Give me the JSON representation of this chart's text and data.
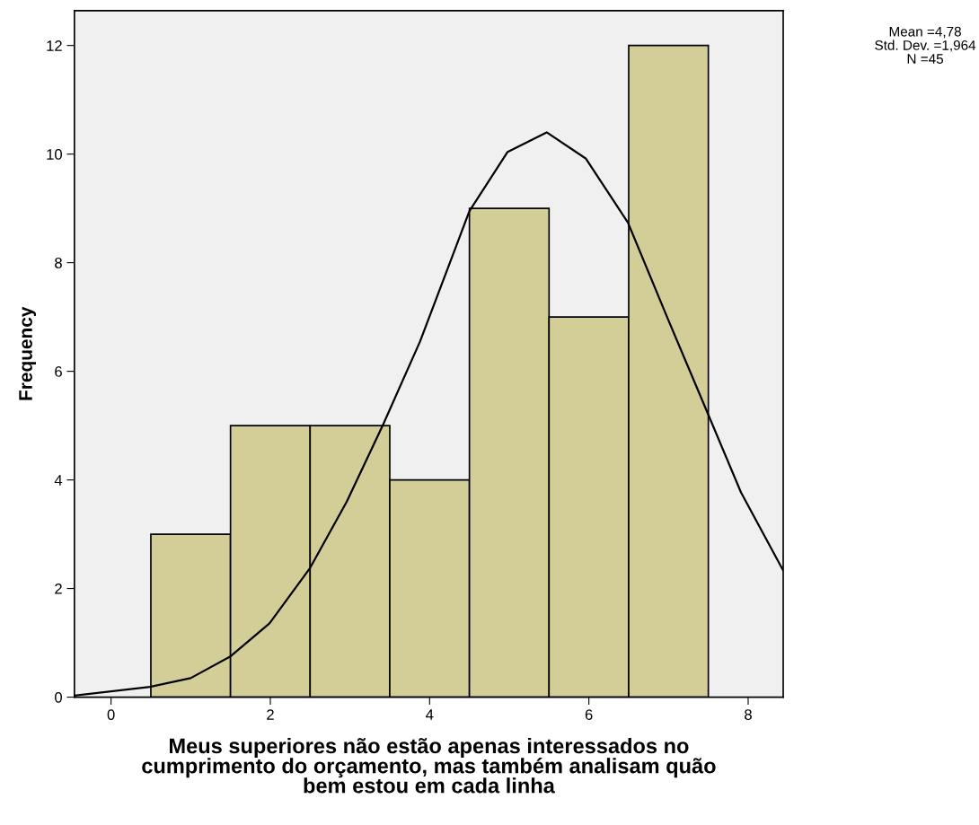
{
  "chart_data": {
    "type": "histogram",
    "xlabel": "Meus superiores não estão apenas interessados no\ncumprimento do orçamento, mas também analisam quão\nbem estou em cada linha",
    "ylabel": "Frequency",
    "bins": [
      0.5,
      1.5,
      2.5,
      3.5,
      4.5,
      5.5,
      6.5,
      7.5
    ],
    "values": [
      3,
      5,
      5,
      4,
      9,
      7,
      12
    ],
    "color": "#d3ce97",
    "series": [
      {
        "type": "line",
        "color": "#000000",
        "x": [
          -0.46,
          0.49,
          1.0,
          1.5,
          1.99,
          2.5,
          2.96,
          3.42,
          3.88,
          4.5,
          4.98,
          5.47,
          5.96,
          6.49,
          6.99,
          7.5,
          7.91,
          8.44
        ],
        "values": [
          0.03,
          0.19,
          0.35,
          0.75,
          1.36,
          2.38,
          3.6,
          5.03,
          6.55,
          8.95,
          10.04,
          10.4,
          9.92,
          8.74,
          6.97,
          5.2,
          3.77,
          2.33
        ]
      }
    ],
    "xlim": [
      -0.46,
      8.44
    ],
    "xticks": [
      0,
      2,
      4,
      6,
      8
    ],
    "ylim": [
      0,
      12.64
    ],
    "yticks": [
      0,
      2,
      4,
      6,
      8,
      10,
      12
    ],
    "grid": false,
    "annotations": [
      "Mean =4,78",
      "Std. Dev. =1,964",
      "N =45"
    ]
  }
}
